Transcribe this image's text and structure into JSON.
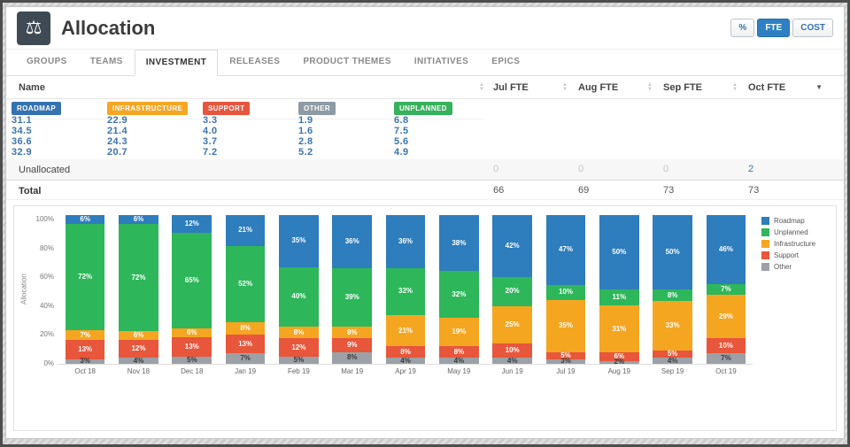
{
  "colors": {
    "accent": "#3572b0",
    "link": "#3b73af"
  },
  "header": {
    "title": "Allocation",
    "icon": {
      "name": "scale-icon",
      "glyph": "⚖"
    },
    "view_toggle": [
      {
        "key": "percent",
        "label": "%",
        "active": false
      },
      {
        "key": "fte",
        "label": "FTE",
        "active": true
      },
      {
        "key": "cost",
        "label": "COST",
        "active": false
      }
    ]
  },
  "tabs": [
    {
      "key": "groups",
      "label": "GROUPS",
      "active": false
    },
    {
      "key": "teams",
      "label": "TEAMS",
      "active": false
    },
    {
      "key": "investment",
      "label": "INVESTMENT",
      "active": true
    },
    {
      "key": "releases",
      "label": "RELEASES",
      "active": false
    },
    {
      "key": "product-themes",
      "label": "PRODUCT THEMES",
      "active": false
    },
    {
      "key": "initiatives",
      "label": "INITIATIVES",
      "active": false
    },
    {
      "key": "epics",
      "label": "EPICS",
      "active": false
    }
  ],
  "table": {
    "columns": [
      {
        "key": "name",
        "label": "Name",
        "sort": "both"
      },
      {
        "key": "jul-fte",
        "label": "Jul FTE",
        "sort": "both"
      },
      {
        "key": "aug-fte",
        "label": "Aug FTE",
        "sort": "both"
      },
      {
        "key": "sep-fte",
        "label": "Sep FTE",
        "sort": "both"
      },
      {
        "key": "oct-fte",
        "label": "Oct FTE",
        "sort": "desc"
      }
    ],
    "rows": [
      {
        "type": "badge",
        "label": "ROADMAP",
        "badge_color": "#3572b0",
        "values": [
          "31.1",
          "34.5",
          "36.6",
          "32.9"
        ]
      },
      {
        "type": "badge",
        "label": "INFRASTRUCTURE",
        "badge_color": "#f5a623",
        "values": [
          "22.9",
          "21.4",
          "24.3",
          "20.7"
        ]
      },
      {
        "type": "badge",
        "label": "SUPPORT",
        "badge_color": "#e8553d",
        "values": [
          "3.3",
          "4.0",
          "3.7",
          "7.2"
        ]
      },
      {
        "type": "badge",
        "label": "OTHER",
        "badge_color": "#8e9aa4",
        "values": [
          "1.9",
          "1.6",
          "2.8",
          "5.2"
        ]
      },
      {
        "type": "badge",
        "label": "UNPLANNED",
        "badge_color": "#37b15c",
        "values": [
          "6.8",
          "7.5",
          "5.6",
          "4.9"
        ]
      },
      {
        "type": "text",
        "label": "Unallocated",
        "values": [
          "0",
          "0",
          "0",
          "2"
        ]
      },
      {
        "type": "total",
        "label": "Total",
        "values": [
          "66",
          "69",
          "73",
          "73"
        ]
      }
    ]
  },
  "chart_data": {
    "type": "bar",
    "stacked": true,
    "normalized_percent": true,
    "title": "",
    "xlabel": "",
    "ylabel": "Allocation",
    "ylim": [
      0,
      100
    ],
    "yticks": [
      "100%",
      "80%",
      "60%",
      "40%",
      "20%",
      "0%"
    ],
    "grid": false,
    "legend_position": "right",
    "categories": [
      "Oct 18",
      "Nov 18",
      "Dec 18",
      "Jan 19",
      "Feb 19",
      "Mar 19",
      "Apr 19",
      "May 19",
      "Jun 19",
      "Jul 19",
      "Aug 19",
      "Sep 19",
      "Oct 19"
    ],
    "stack_order_top_to_bottom": [
      "Roadmap",
      "Unplanned",
      "Infrastructure",
      "Support",
      "Other"
    ],
    "series": [
      {
        "name": "Roadmap",
        "color": "#2e7dbc",
        "label_color": "#ffffff",
        "values": [
          6,
          6,
          12,
          21,
          35,
          36,
          36,
          38,
          42,
          47,
          50,
          50,
          46
        ]
      },
      {
        "name": "Unplanned",
        "color": "#2db75a",
        "label_color": "#ffffff",
        "values": [
          72,
          72,
          65,
          52,
          40,
          39,
          32,
          32,
          20,
          10,
          11,
          8,
          7
        ]
      },
      {
        "name": "Infrastructure",
        "color": "#f4a621",
        "label_color": "#ffffff",
        "values": [
          7,
          6,
          6,
          8,
          8,
          8,
          21,
          19,
          25,
          35,
          31,
          33,
          29
        ]
      },
      {
        "name": "Support",
        "color": "#e8563b",
        "label_color": "#ffffff",
        "values": [
          13,
          12,
          13,
          13,
          12,
          9,
          8,
          8,
          10,
          5,
          6,
          5,
          10
        ]
      },
      {
        "name": "Other",
        "color": "#9ba1a6",
        "label_color": "#3b3b3b",
        "values": [
          3,
          4,
          5,
          7,
          5,
          8,
          4,
          4,
          4,
          3,
          2,
          4,
          7
        ]
      }
    ]
  }
}
